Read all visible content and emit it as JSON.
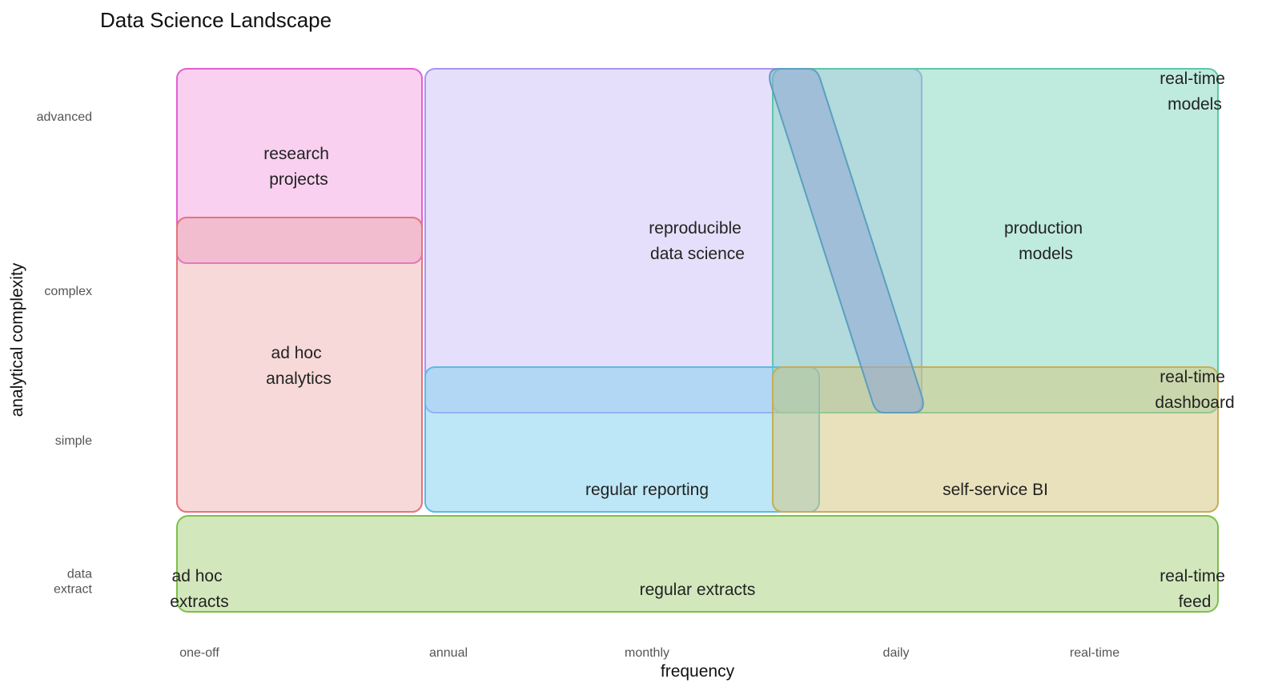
{
  "title": "Data Science Landscape",
  "x_axis": {
    "title": "frequency",
    "ticks": [
      "one-off",
      "annual",
      "monthly",
      "daily",
      "real-time"
    ]
  },
  "y_axis": {
    "title": "analytical complexity",
    "ticks": [
      "data extract",
      "simple",
      "complex",
      "advanced"
    ]
  },
  "regions": [
    {
      "id": "research-projects",
      "lines": [
        "research",
        "projects"
      ],
      "fill": "#ee77d5",
      "stroke": "#e35fd0"
    },
    {
      "id": "ad-hoc-analytics",
      "lines": [
        "ad hoc",
        "analytics"
      ],
      "fill": "#e9a09e",
      "stroke": "#e5737a"
    },
    {
      "id": "reproducible-data-science",
      "lines": [
        "reproducible",
        "data science"
      ],
      "fill": "#c7b9f7",
      "stroke": "#a894f3"
    },
    {
      "id": "production-models",
      "lines": [
        "production",
        "models"
      ],
      "fill": "#7fd6bd",
      "stroke": "#5cc8a7"
    },
    {
      "id": "real-time-models",
      "lines": [
        "real-time",
        "models"
      ]
    },
    {
      "id": "regular-reporting",
      "lines": [
        "regular reporting"
      ],
      "fill": "#7bd0f0",
      "stroke": "#5cb9e6"
    },
    {
      "id": "self-service-bi",
      "lines": [
        "self-service BI"
      ],
      "fill": "#d4c47a",
      "stroke": "#c5ae55"
    },
    {
      "id": "real-time-dashboard",
      "lines": [
        "real-time",
        "dashboard"
      ]
    },
    {
      "id": "regular-extracts",
      "lines": [
        "regular extracts"
      ],
      "fill": "#a6d27a",
      "stroke": "#7cbf4a"
    },
    {
      "id": "ad-hoc-extracts",
      "lines": [
        "ad hoc",
        "extracts"
      ]
    },
    {
      "id": "real-time-feed",
      "lines": [
        "real-time",
        "feed"
      ]
    }
  ],
  "band": {
    "fill": "#8fa8d6",
    "stroke": "#5b9fc0"
  }
}
